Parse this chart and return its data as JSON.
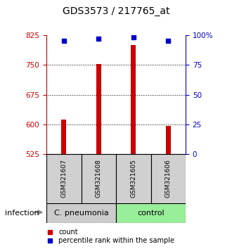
{
  "title": "GDS3573 / 217765_at",
  "samples": [
    "GSM321607",
    "GSM321608",
    "GSM321605",
    "GSM321606"
  ],
  "bar_values": [
    613,
    752,
    800,
    597
  ],
  "percentile_values": [
    95,
    97,
    98,
    95
  ],
  "bar_color": "#cc0000",
  "percentile_color": "#0000cc",
  "ylim_left": [
    525,
    825
  ],
  "ylim_right": [
    0,
    100
  ],
  "yticks_left": [
    525,
    600,
    675,
    750,
    825
  ],
  "yticks_right": [
    0,
    25,
    50,
    75,
    100
  ],
  "ytick_labels_right": [
    "0",
    "25",
    "50",
    "75",
    "100%"
  ],
  "dotted_lines": [
    600,
    675,
    750
  ],
  "groups": [
    {
      "label": "C. pneumonia",
      "color": "#cccccc",
      "indices": [
        0,
        1
      ]
    },
    {
      "label": "control",
      "color": "#99ee99",
      "indices": [
        2,
        3
      ]
    }
  ],
  "group_label": "infection",
  "legend_count_label": "count",
  "legend_percentile_label": "percentile rank within the sample",
  "bar_width": 0.15,
  "left_axis_color": "#cc0000",
  "right_axis_color": "#0000cc",
  "background_color": "#ffffff"
}
